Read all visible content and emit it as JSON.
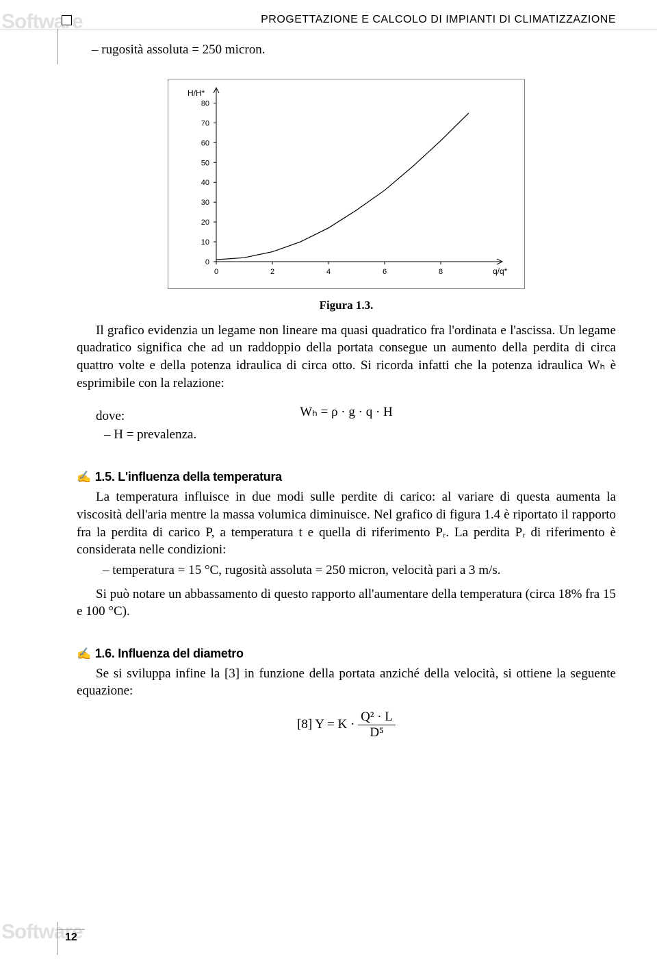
{
  "header": {
    "watermark": "Software",
    "title": "PROGETTAZIONE E CALCOLO DI IMPIANTI DI CLIMATIZZAZIONE"
  },
  "intro_bullet": "–   rugosità assoluta = 250 micron.",
  "chart": {
    "type": "line",
    "y_label": "H/H*",
    "x_label": "q/q*",
    "xlim": [
      0,
      10
    ],
    "ylim": [
      0,
      85
    ],
    "yticks": [
      0,
      10,
      20,
      30,
      40,
      50,
      60,
      70,
      80
    ],
    "xticks": [
      0,
      2,
      4,
      6,
      8
    ],
    "grid": false,
    "border_color": "#999999",
    "line_color": "#000000",
    "line_width": 1.2,
    "background_color": "#ffffff",
    "axis_color": "#000000",
    "tick_font_size": 11,
    "label_font_size": 12,
    "curve_points": [
      {
        "x": 0,
        "y": 1
      },
      {
        "x": 1,
        "y": 2
      },
      {
        "x": 2,
        "y": 5
      },
      {
        "x": 3,
        "y": 10
      },
      {
        "x": 4,
        "y": 17
      },
      {
        "x": 5,
        "y": 26
      },
      {
        "x": 6,
        "y": 36
      },
      {
        "x": 7,
        "y": 48
      },
      {
        "x": 8,
        "y": 61
      },
      {
        "x": 9,
        "y": 75
      }
    ]
  },
  "fig_caption": "Figura 1.3.",
  "para1": "Il grafico evidenzia un legame non lineare ma quasi quadratico fra l'ordinata e l'ascissa. Un legame quadratico significa che ad un raddoppio della portata consegue un aumento della perdita di circa quattro volte e della potenza idraulica di circa otto. Si ricorda infatti che la potenza idraulica Wₕ è esprimibile con la relazione:",
  "formula1": "Wₕ = ρ · g · q · H",
  "dove": "dove:",
  "dove_item": "–   H = prevalenza.",
  "section15": {
    "number": "1.5.",
    "title": "L'influenza della temperatura",
    "para": "La temperatura influisce in due modi sulle perdite di carico: al variare di questa aumenta la viscosità dell'aria mentre la massa volumica diminuisce. Nel grafico di figura 1.4 è riportato il rapporto fra la perdita di carico P, a temperatura t e quella di riferimento Pᵣ. La perdita Pᵣ di riferimento è considerata nelle condizioni:",
    "bullet": "–   temperatura = 15 °C, rugosità assoluta = 250 micron, velocità pari a 3 m/s.",
    "para2": "Si può notare un abbassamento di questo rapporto all'aumentare della temperatura (circa 18% fra 15 e 100 °C)."
  },
  "section16": {
    "number": "1.6.",
    "title": "Influenza del diametro",
    "para": "Se si sviluppa infine la [3] in funzione della portata anziché della velocità, si ottiene la seguente equazione:",
    "eq_label": "[8] Y = K ·",
    "eq_num": "Q² · L",
    "eq_den": "D⁵"
  },
  "page_number": "12"
}
